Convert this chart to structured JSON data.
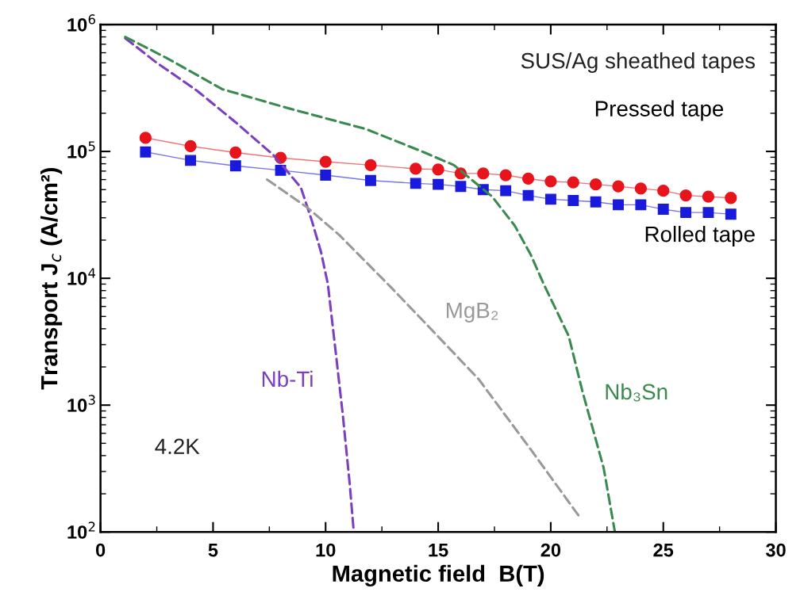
{
  "chart_data": {
    "type": "line",
    "xlabel": "Magnetic field  B(T)",
    "ylabel": "Transport J$_{c}$ (A/cm²)",
    "log": "y",
    "xlim": [
      0,
      30
    ],
    "xticks": [
      0,
      5,
      10,
      15,
      20,
      25,
      30
    ],
    "ylim": [
      100,
      1000000
    ],
    "yticks": [
      {
        "value": 100,
        "label": "10$^{2}$"
      },
      {
        "value": 1000,
        "label": "10$^{3}$"
      },
      {
        "value": 10000,
        "label": "10$^{4}$"
      },
      {
        "value": 100000,
        "label": "10$^{5}$"
      },
      {
        "value": 1000000,
        "label": "10$^{6}$"
      }
    ],
    "grid": false,
    "legend": false,
    "series": [
      {
        "name": "Pressed tape",
        "color": "#e8141c",
        "marker": "circle",
        "line_style": "solid",
        "x": [
          2,
          4,
          6,
          8,
          10,
          12,
          14,
          15,
          16,
          17,
          18,
          19,
          20,
          21,
          22,
          23,
          24,
          25,
          26,
          27,
          28
        ],
        "values": [
          128000,
          110000,
          98000,
          89000,
          83000,
          78000,
          73000,
          72000,
          67000,
          67000,
          65000,
          61000,
          58000,
          57000,
          55000,
          53000,
          51000,
          49000,
          45000,
          44000,
          43000
        ]
      },
      {
        "name": "Rolled tape",
        "color": "#1a1adc",
        "marker": "square",
        "line_style": "solid",
        "x": [
          2,
          4,
          6,
          8,
          10,
          12,
          14,
          15,
          16,
          17,
          18,
          19,
          20,
          21,
          22,
          23,
          24,
          25,
          26,
          27,
          28
        ],
        "values": [
          99000,
          85000,
          77000,
          71000,
          65000,
          59000,
          56000,
          55000,
          53000,
          50000,
          49000,
          45000,
          42000,
          41000,
          40000,
          38000,
          38000,
          35000,
          33000,
          33000,
          32000
        ]
      },
      {
        "name": "Nb-Ti",
        "color": "#7b3fbf",
        "marker": "none",
        "line_style": "dashed",
        "x": [
          1.1,
          2.5,
          4.3,
          6,
          7.7,
          8.9,
          9.4,
          9.8,
          10.1,
          10.45,
          10.76,
          11.07,
          11.25
        ],
        "values": [
          780000,
          500000,
          300000,
          170000,
          93000,
          52000,
          28000,
          16000,
          9000,
          2600,
          850,
          240,
          100
        ]
      },
      {
        "name": "MgB₂",
        "color": "#999999",
        "marker": "none",
        "line_style": "dashed",
        "x": [
          7.4,
          9.2,
          10.6,
          12.9,
          14.5,
          16.8,
          19.1,
          21.3
        ],
        "values": [
          60000,
          36000,
          22000,
          8500,
          4300,
          1600,
          450,
          130
        ]
      },
      {
        "name": "Nb₃Sn",
        "color": "#3a8a50",
        "marker": "none",
        "line_style": "dashed",
        "x": [
          1.1,
          2.9,
          5.4,
          8.3,
          11.8,
          14.4,
          15.7,
          17.4,
          18.4,
          19.1,
          19.7,
          20.8,
          21.4,
          22.35,
          22.85
        ],
        "values": [
          800000,
          550000,
          310000,
          220000,
          150000,
          98000,
          78000,
          44000,
          26000,
          15500,
          8900,
          3500,
          1300,
          320,
          100
        ]
      }
    ],
    "annotations": [
      "SUS/Ag sheathed tapes",
      "4.2K"
    ]
  }
}
